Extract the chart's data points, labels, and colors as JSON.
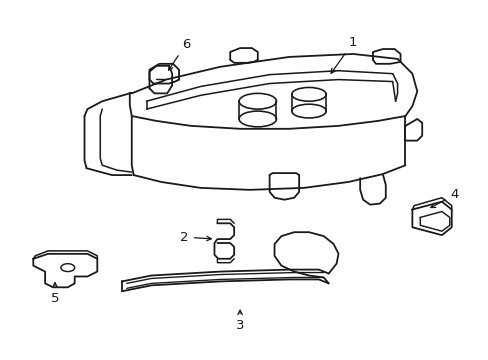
{
  "background_color": "#ffffff",
  "line_color": "#1a1a1a",
  "line_width": 1.3,
  "figsize": [
    4.89,
    3.6
  ],
  "dpi": 100
}
